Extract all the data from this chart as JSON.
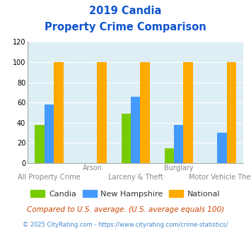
{
  "title_line1": "2019 Candia",
  "title_line2": "Property Crime Comparison",
  "categories": [
    "All Property Crime",
    "Arson",
    "Larceny & Theft",
    "Burglary",
    "Motor Vehicle Theft"
  ],
  "top_labels": [
    "",
    "Arson",
    "",
    "Burglary",
    ""
  ],
  "bottom_labels": [
    "All Property Crime",
    "",
    "Larceny & Theft",
    "",
    "Motor Vehicle Theft"
  ],
  "candia": [
    38,
    0,
    49,
    15,
    0
  ],
  "new_hampshire": [
    58,
    0,
    66,
    38,
    30
  ],
  "national": [
    100,
    100,
    100,
    100,
    100
  ],
  "bar_colors": {
    "candia": "#77cc00",
    "new_hampshire": "#4499ff",
    "national": "#ffaa00"
  },
  "ylim": [
    0,
    120
  ],
  "yticks": [
    0,
    20,
    40,
    60,
    80,
    100,
    120
  ],
  "title_color": "#1155cc",
  "axes_bg": "#ddeef5",
  "fig_bg": "#ffffff",
  "legend_labels": [
    "Candia",
    "New Hampshire",
    "National"
  ],
  "footnote1": "Compared to U.S. average. (U.S. average equals 100)",
  "footnote2": "© 2025 CityRating.com - https://www.cityrating.com/crime-statistics/",
  "footnote1_color": "#cc4400",
  "footnote2_color": "#4488cc",
  "grid_color": "#ffffff",
  "spine_color": "#aaaaaa"
}
